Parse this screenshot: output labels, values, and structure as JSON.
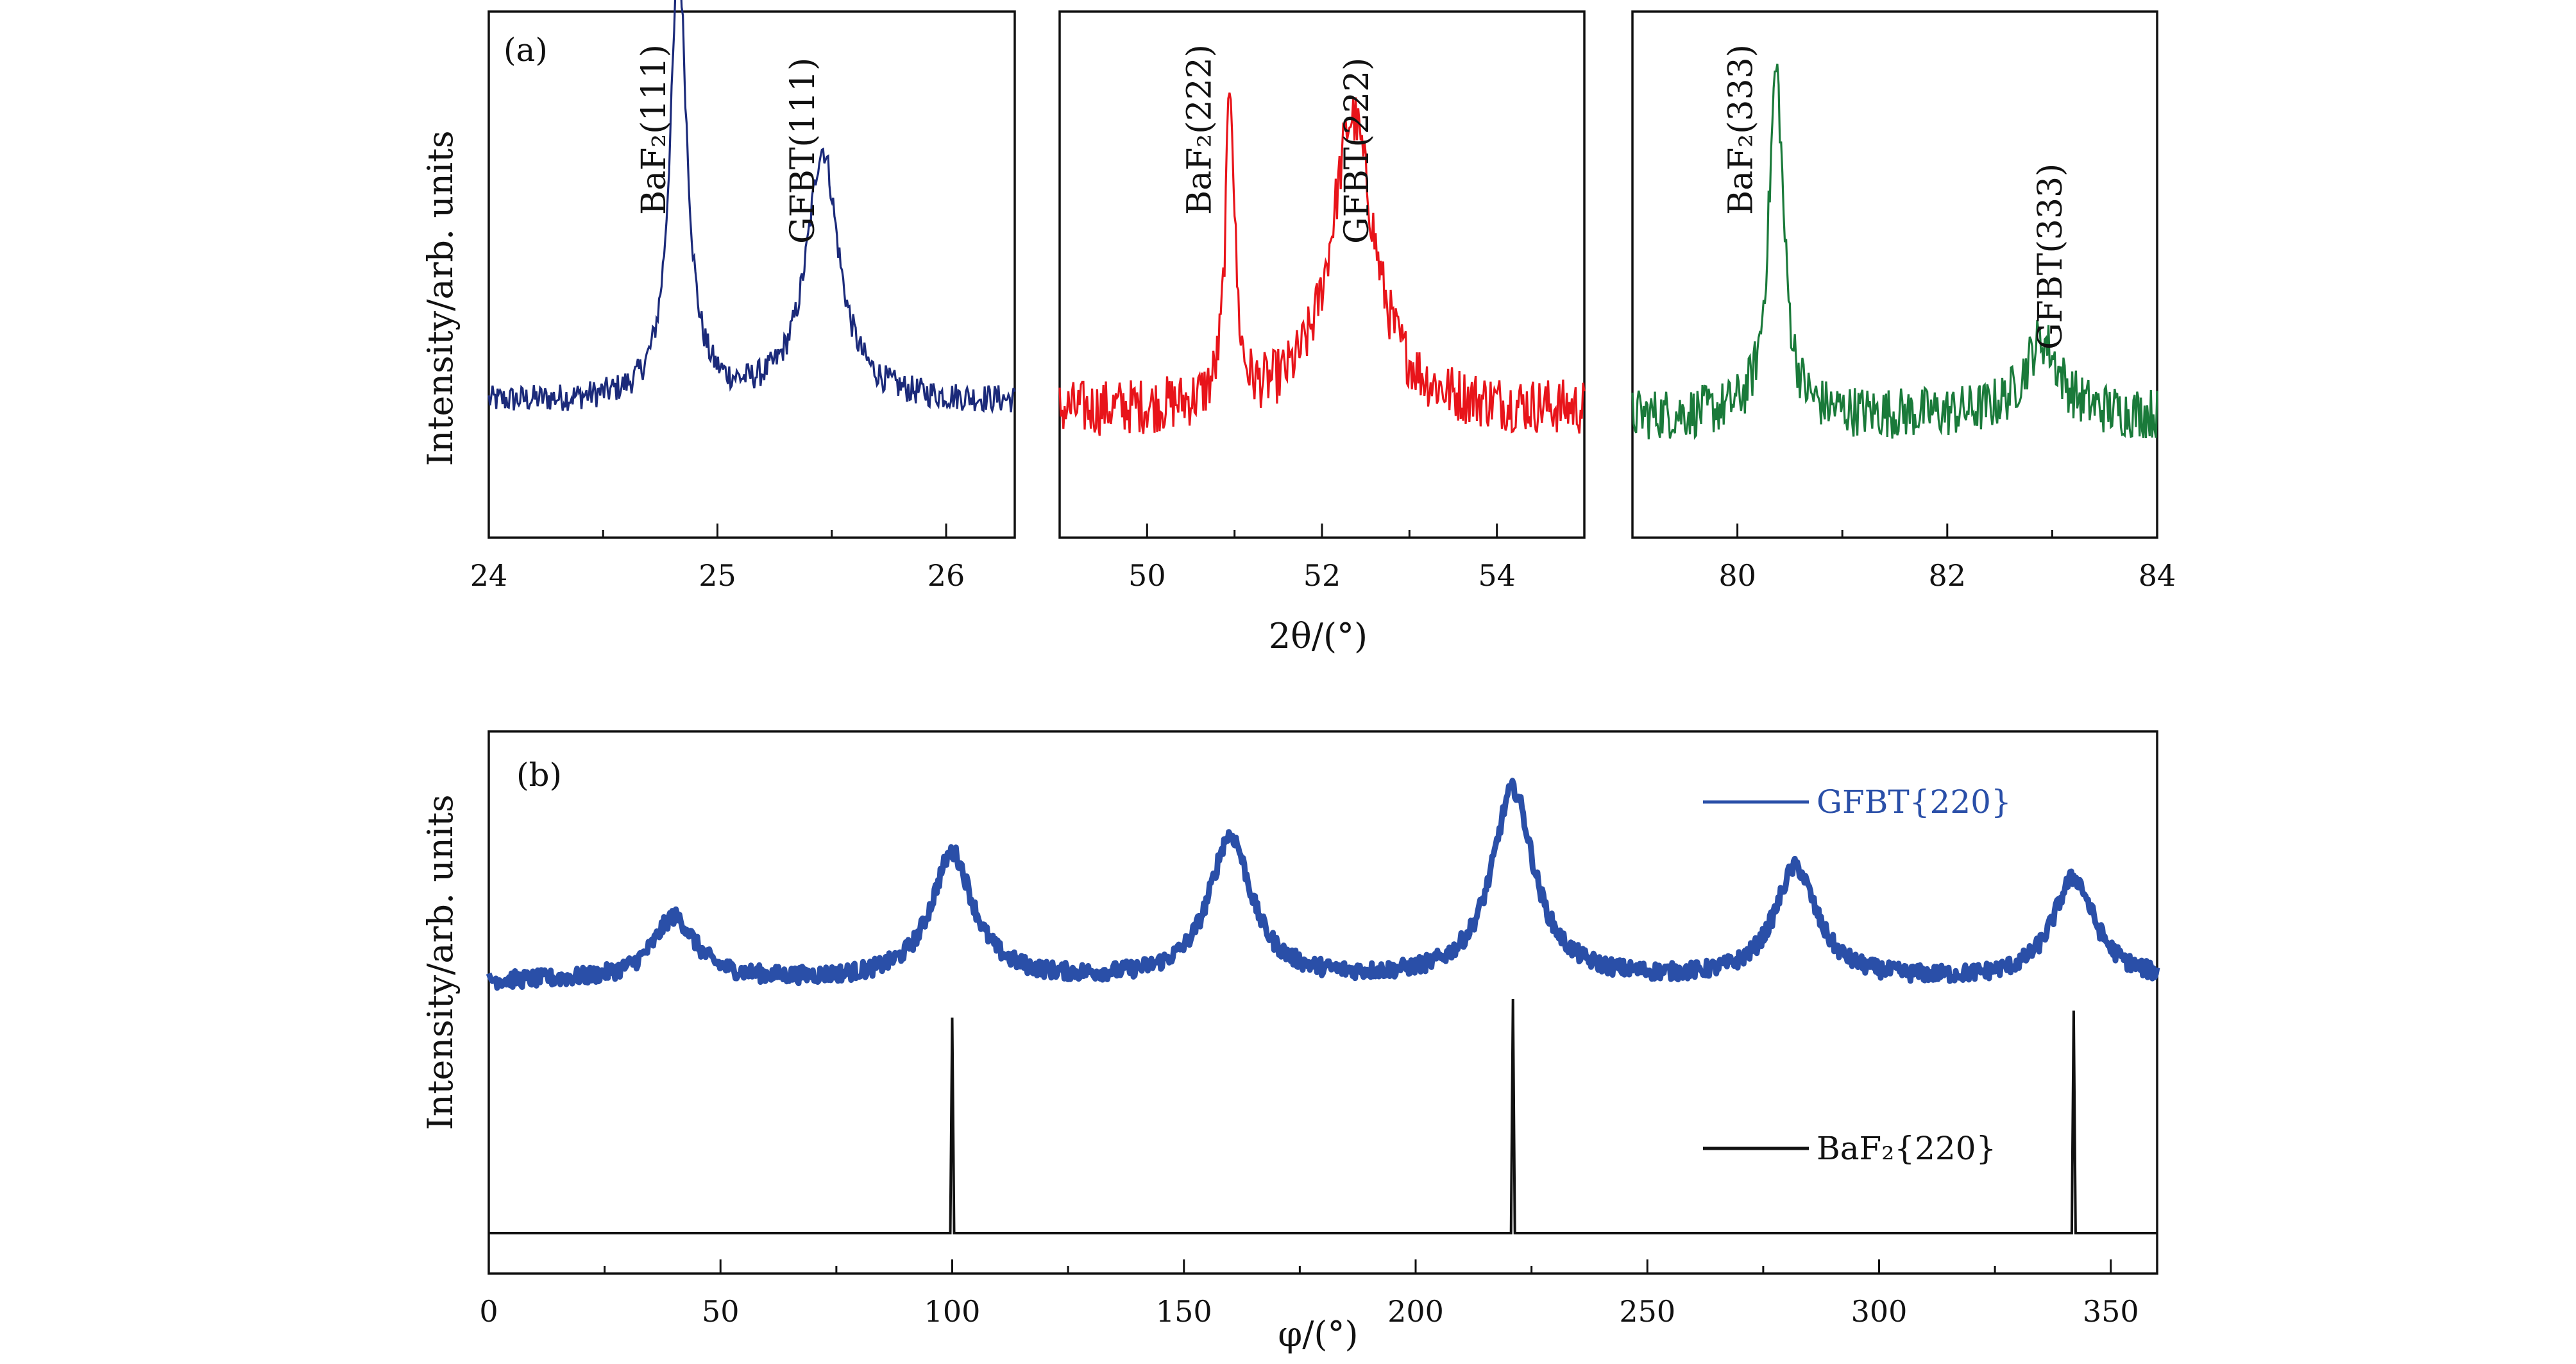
{
  "chart_data": [
    {
      "type": "line",
      "panel_label": "(a)",
      "ylabel": "Intensity/arb. units",
      "xlabel_shared": "2θ/(°)",
      "subplots": [
        {
          "color": "#1b2a7a",
          "xlim": [
            24,
            26.3
          ],
          "xticks": [
            "24",
            "25",
            "26"
          ],
          "xtick_values": [
            24,
            25,
            26
          ],
          "annotations": [
            {
              "text": "BaF₂(111)",
              "x": 24.8
            },
            {
              "text": "GFBT(111)",
              "x": 25.45
            }
          ],
          "peaks": [
            {
              "name": "BaF₂(111)",
              "center": 24.83,
              "height": 0.92,
              "width": 0.045
            },
            {
              "name": "GFBT(111)",
              "center": 25.46,
              "height": 0.53,
              "width": 0.085
            }
          ],
          "baseline": 0.22,
          "noise": 0.03
        },
        {
          "color": "#e8141a",
          "xlim": [
            49,
            55
          ],
          "xticks": [
            "50",
            "52",
            "54"
          ],
          "xtick_values": [
            50,
            52,
            54
          ],
          "annotations": [
            {
              "text": "BaF₂(222)",
              "x": 50.8
            },
            {
              "text": "GFBT(222)",
              "x": 52.6
            }
          ],
          "peaks": [
            {
              "name": "BaF₂(222)",
              "center": 50.95,
              "height": 0.68,
              "width": 0.06
            },
            {
              "name": "GFBT(222)",
              "center": 52.35,
              "height": 0.62,
              "width": 0.3
            }
          ],
          "baseline": 0.2,
          "noise": 0.06
        },
        {
          "color": "#1a7a3a",
          "xlim": [
            79,
            84
          ],
          "xticks": [
            "80",
            "82",
            "84"
          ],
          "xtick_values": [
            80,
            82,
            84
          ],
          "annotations": [
            {
              "text": "BaF₂(333)",
              "x": 80.2
            },
            {
              "text": "GFBT(333)",
              "x": 83.15
            }
          ],
          "peaks": [
            {
              "name": "BaF₂(333)",
              "center": 80.37,
              "height": 0.73,
              "width": 0.085
            },
            {
              "name": "GFBT(333)",
              "center": 82.9,
              "height": 0.16,
              "width": 0.2
            }
          ],
          "baseline": 0.19,
          "noise": 0.055
        }
      ]
    },
    {
      "type": "line",
      "panel_label": "(b)",
      "xlabel": "φ/(°)",
      "ylabel": "Intensity/arb. units",
      "xlim": [
        0,
        360
      ],
      "xticks": [
        "0",
        "50",
        "100",
        "150",
        "200",
        "250",
        "300",
        "350"
      ],
      "xtick_values": [
        0,
        50,
        100,
        150,
        200,
        250,
        300,
        350
      ],
      "series": [
        {
          "name": "GFBT{220}",
          "color": "#2a4fa8",
          "peak_centers": [
            40,
            100,
            160,
            221,
            282,
            342
          ],
          "peak_heights": [
            0.26,
            0.52,
            0.59,
            0.78,
            0.46,
            0.42
          ],
          "peak_width": 5.5,
          "baseline": 0.0
        },
        {
          "name": "BaF₂{220}",
          "color": "#111111",
          "peak_centers": [
            100,
            221,
            342
          ],
          "peak_heights": [
            0.92,
            1.0,
            0.95
          ]
        }
      ]
    }
  ]
}
